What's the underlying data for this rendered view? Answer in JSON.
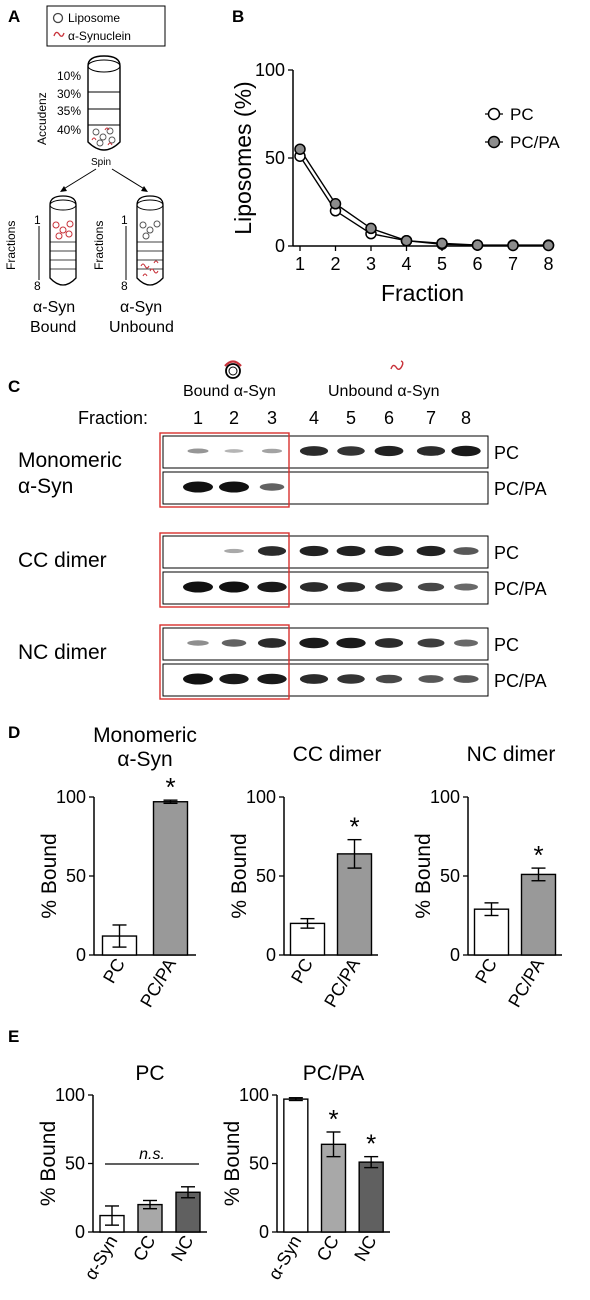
{
  "colors": {
    "bar_pc": "#ffffff",
    "bar_pcpa": "#999999",
    "bar_cc": "#a8a8a8",
    "bar_nc": "#606060",
    "highlight_box": "#d8302e",
    "alpha_syn": "#c8323a",
    "liposome_fill": "#ffffff",
    "pcpa_marker": "#8c8c8c"
  },
  "panel_letters": [
    "A",
    "B",
    "C",
    "D",
    "E"
  ],
  "panel_a": {
    "legend": {
      "liposome": "Liposome",
      "synuclein": "α-Synuclein"
    },
    "gradient_title": "Accudenz",
    "gradient_layers": [
      "10%",
      "30%",
      "35%",
      "40%"
    ],
    "spin_label": "Spin",
    "fractions_label": "Fractions",
    "fraction_top": "1",
    "fraction_bottom": "8",
    "bound_label_1": "α-Syn",
    "bound_label_2": "Bound",
    "unbound_label_1": "α-Syn",
    "unbound_label_2": "Unbound"
  },
  "panel_c": {
    "fraction_label": "Fraction:",
    "fractions": [
      "1",
      "2",
      "3",
      "4",
      "5",
      "6",
      "7",
      "8"
    ],
    "bound_label": "Bound α-Syn",
    "unbound_label": "Unbound α-Syn",
    "groups": [
      {
        "title_1": "Monomeric",
        "title_2": "α-Syn",
        "rows": [
          {
            "label": "PC",
            "bands": [
              0.25,
              0.08,
              0.18,
              0.85,
              0.8,
              0.9,
              0.85,
              0.95
            ]
          },
          {
            "label": "PC/PA",
            "bands": [
              1.0,
              1.0,
              0.55,
              0,
              0,
              0,
              0,
              0
            ]
          }
        ]
      },
      {
        "title_1": "CC dimer",
        "title_2": "",
        "rows": [
          {
            "label": "PC",
            "bands": [
              0.0,
              0.15,
              0.85,
              0.9,
              0.9,
              0.9,
              0.9,
              0.6
            ]
          },
          {
            "label": "PC/PA",
            "bands": [
              1.0,
              1.0,
              0.95,
              0.85,
              0.85,
              0.8,
              0.7,
              0.5
            ]
          }
        ]
      },
      {
        "title_1": "NC dimer",
        "title_2": "",
        "rows": [
          {
            "label": "PC",
            "bands": [
              0.3,
              0.55,
              0.85,
              0.95,
              0.95,
              0.85,
              0.75,
              0.5
            ]
          },
          {
            "label": "PC/PA",
            "bands": [
              1.0,
              0.95,
              0.95,
              0.85,
              0.8,
              0.7,
              0.6,
              0.6
            ]
          }
        ]
      }
    ]
  },
  "chart_data": [
    {
      "id": "B",
      "type": "line",
      "xlabel": "Fraction",
      "ylabel": "Liposomes (%)",
      "x": [
        1,
        2,
        3,
        4,
        5,
        6,
        7,
        8
      ],
      "ylim": [
        0,
        100
      ],
      "yticks": [
        0,
        50,
        100
      ],
      "legend_position": "top-right",
      "series": [
        {
          "name": "PC",
          "marker": "open-circle",
          "values": [
            51,
            20,
            7,
            3,
            1,
            0.5,
            0.5,
            0.5
          ]
        },
        {
          "name": "PC/PA",
          "marker": "filled-circle",
          "values": [
            55,
            24,
            10,
            3,
            1.5,
            0.5,
            0.3,
            0.3
          ]
        }
      ]
    },
    {
      "id": "D1",
      "type": "bar",
      "title": "Monomeric α-Syn",
      "ylabel": "% Bound",
      "categories": [
        "PC",
        "PC/PA"
      ],
      "values": [
        12,
        97
      ],
      "errors": [
        7,
        1
      ],
      "significance": [
        "",
        "*"
      ],
      "ylim": [
        0,
        100
      ],
      "yticks": [
        0,
        50,
        100
      ]
    },
    {
      "id": "D2",
      "type": "bar",
      "title": "CC dimer",
      "ylabel": "% Bound",
      "categories": [
        "PC",
        "PC/PA"
      ],
      "values": [
        20,
        64
      ],
      "errors": [
        3,
        9
      ],
      "significance": [
        "",
        "*"
      ],
      "ylim": [
        0,
        100
      ],
      "yticks": [
        0,
        50,
        100
      ]
    },
    {
      "id": "D3",
      "type": "bar",
      "title": "NC dimer",
      "ylabel": "% Bound",
      "categories": [
        "PC",
        "PC/PA"
      ],
      "values": [
        29,
        51
      ],
      "errors": [
        4,
        4
      ],
      "significance": [
        "",
        "*"
      ],
      "ylim": [
        0,
        100
      ],
      "yticks": [
        0,
        50,
        100
      ]
    },
    {
      "id": "E1",
      "type": "bar",
      "title": "PC",
      "ylabel": "% Bound",
      "categories": [
        "α-Syn",
        "CC",
        "NC"
      ],
      "values": [
        12,
        20,
        29
      ],
      "errors": [
        7,
        3,
        4
      ],
      "significance": [
        "",
        "",
        ""
      ],
      "annotation": "n.s.",
      "ylim": [
        0,
        100
      ],
      "yticks": [
        0,
        50,
        100
      ]
    },
    {
      "id": "E2",
      "type": "bar",
      "title": "PC/PA",
      "ylabel": "% Bound",
      "categories": [
        "α-Syn",
        "CC",
        "NC"
      ],
      "values": [
        97,
        64,
        51
      ],
      "errors": [
        1,
        9,
        4
      ],
      "significance": [
        "",
        "*",
        "*"
      ],
      "ylim": [
        0,
        100
      ],
      "yticks": [
        0,
        50,
        100
      ]
    }
  ]
}
